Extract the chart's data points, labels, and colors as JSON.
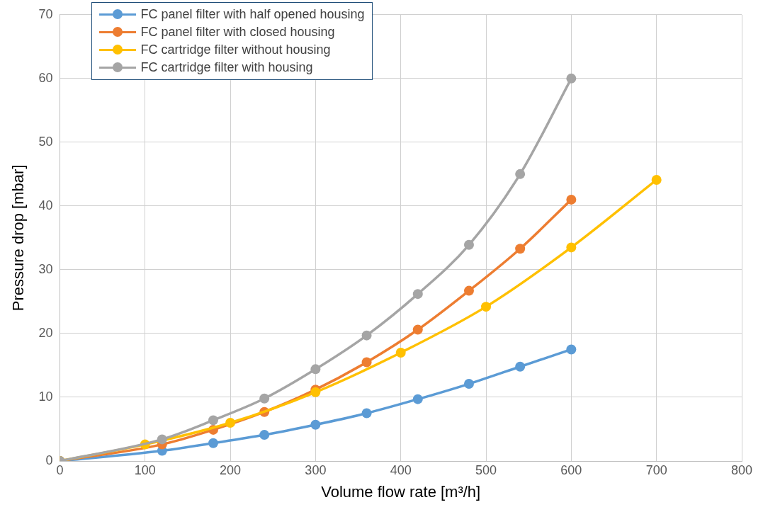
{
  "chart_data": {
    "type": "line",
    "xlabel": "Volume flow rate [m³/h]",
    "ylabel": "Pressure drop [mbar]",
    "xlim": [
      0,
      800
    ],
    "xticks": [
      0,
      100,
      200,
      300,
      400,
      500,
      600,
      700,
      800
    ],
    "ylim": [
      0,
      70
    ],
    "yticks": [
      0,
      10,
      20,
      30,
      40,
      50,
      60,
      70
    ],
    "grid": true,
    "legend": "top left",
    "marker": "circle",
    "line_style": "solid",
    "series": [
      {
        "name": "FC panel filter with half opened housing",
        "color": "#5b9bd5",
        "x": [
          0,
          120,
          180,
          240,
          300,
          360,
          420,
          480,
          540,
          600
        ],
        "values": [
          0,
          1.6,
          2.8,
          4.1,
          5.7,
          7.5,
          9.7,
          12.1,
          14.8,
          17.5
        ]
      },
      {
        "name": "FC panel filter with closed housing",
        "color": "#ed7d31",
        "x": [
          0,
          120,
          180,
          240,
          300,
          360,
          420,
          480,
          540,
          600
        ],
        "values": [
          0,
          2.6,
          4.9,
          7.7,
          11.2,
          15.5,
          20.6,
          26.7,
          33.3,
          41
        ]
      },
      {
        "name": "FC cartridge filter without housing",
        "color": "#ffc000",
        "x": [
          0,
          100,
          200,
          300,
          400,
          500,
          600,
          700
        ],
        "values": [
          0,
          2.6,
          6.0,
          10.8,
          17.0,
          24.2,
          33.5,
          44.1
        ]
      },
      {
        "name": "FC cartridge filter with housing",
        "color": "#a5a5a5",
        "x": [
          0,
          120,
          180,
          240,
          300,
          360,
          420,
          480,
          540,
          600
        ],
        "values": [
          0,
          3.4,
          6.4,
          9.8,
          14.4,
          19.7,
          26.2,
          33.9,
          45,
          60
        ]
      }
    ]
  }
}
